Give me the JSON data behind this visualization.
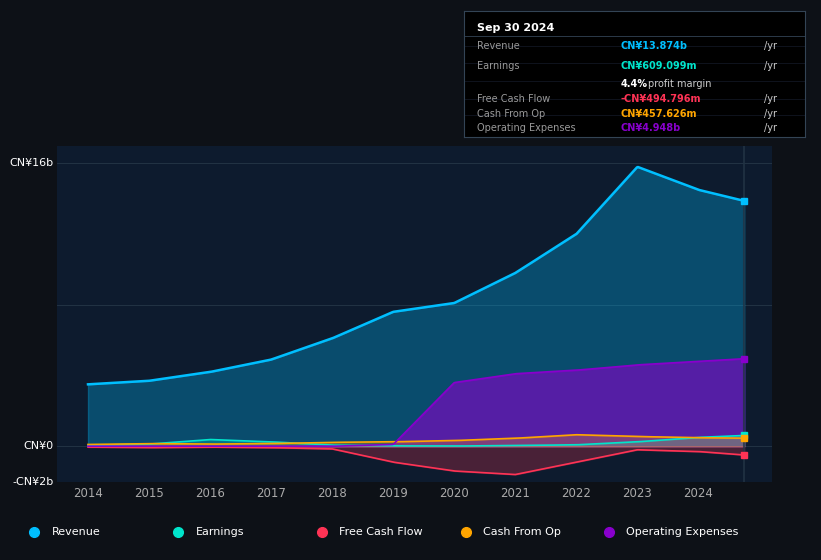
{
  "background_color": "#0d1117",
  "plot_bg_color": "#0d1b2e",
  "ylim": [
    -2000000000.0,
    17000000000.0
  ],
  "xlim_start": 2013.5,
  "xlim_end": 2025.2,
  "xtick_years": [
    2014,
    2015,
    2016,
    2017,
    2018,
    2019,
    2020,
    2021,
    2022,
    2023,
    2024
  ],
  "colors": {
    "revenue": "#00bfff",
    "earnings": "#00e5cc",
    "free_cash_flow": "#ff3355",
    "cash_from_op": "#ffa500",
    "operating_expenses": "#8800cc"
  },
  "legend_items": [
    "Revenue",
    "Earnings",
    "Free Cash Flow",
    "Cash From Op",
    "Operating Expenses"
  ],
  "tooltip": {
    "date": "Sep 30 2024",
    "revenue_label": "Revenue",
    "revenue_val": "CN¥13.874b",
    "revenue_color": "#00bfff",
    "earnings_label": "Earnings",
    "earnings_val": "CN¥609.099m",
    "earnings_color": "#00e5cc",
    "profit_margin": "4.4%",
    "profit_margin_text": "profit margin",
    "fcf_label": "Free Cash Flow",
    "fcf_val": "-CN¥494.796m",
    "fcf_color": "#ff3355",
    "cashop_label": "Cash From Op",
    "cashop_val": "CN¥457.626m",
    "cashop_color": "#ffa500",
    "opex_label": "Operating Expenses",
    "opex_val": "CN¥4.948b",
    "opex_color": "#8800cc"
  }
}
